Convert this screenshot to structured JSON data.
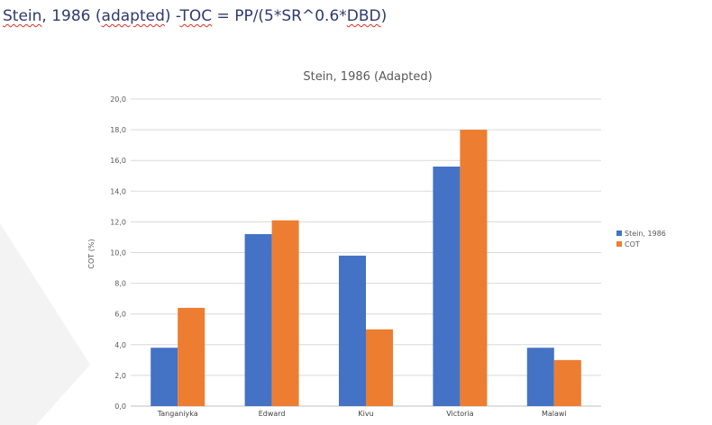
{
  "document": {
    "heading": {
      "w1": "Stein",
      "w2": ", 1986 (",
      "w3": "adapted",
      "w4": ") -",
      "w5": "TOC",
      "w6": " = PP/(5*SR^0.6*",
      "w7": "DBD",
      "w8": ")"
    }
  },
  "chart_data": {
    "type": "bar",
    "title": "Stein, 1986 (Adapted)",
    "xlabel": "",
    "ylabel": "COT (%)",
    "categories": [
      "Tanganiyka",
      "Edward",
      "Kivu",
      "Victoria",
      "Malawi"
    ],
    "series": [
      {
        "name": "Stein, 1986",
        "color": "#4472c4",
        "values": [
          3.8,
          11.2,
          9.8,
          15.6,
          3.8
        ]
      },
      {
        "name": "COT",
        "color": "#ed7d31",
        "values": [
          6.4,
          12.1,
          5.0,
          18.0,
          3.0
        ]
      }
    ],
    "ylim": [
      0,
      20
    ],
    "yticks": [
      "0,0",
      "2,0",
      "4,0",
      "6,0",
      "8,0",
      "10,0",
      "12,0",
      "14,0",
      "16,0",
      "18,0",
      "20,0"
    ],
    "grid": true,
    "legend": "right"
  }
}
